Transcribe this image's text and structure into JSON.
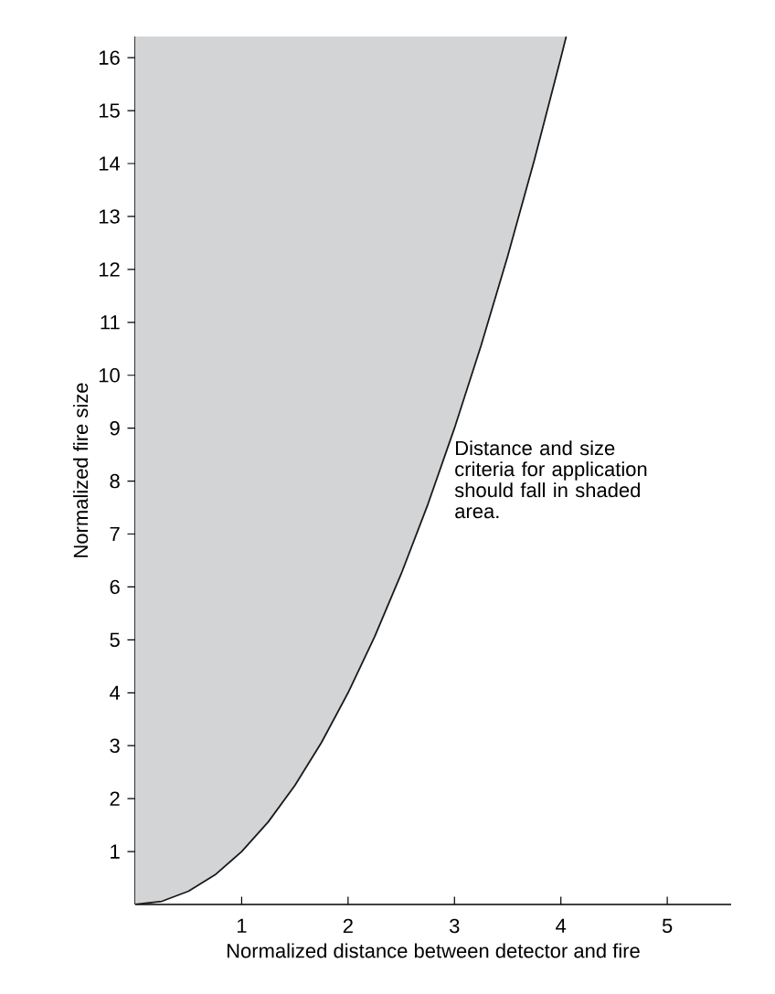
{
  "chart_data": {
    "type": "line",
    "xlabel": "Normalized distance between detector and fire",
    "ylabel": "Normalized fire size",
    "annotations": [
      "Distance and size criteria for application should fall in shaded area."
    ],
    "xlim": [
      0,
      5.6
    ],
    "ylim": [
      0,
      16.4
    ],
    "xticks": [
      1,
      2,
      3,
      4,
      5
    ],
    "yticks": [
      1,
      2,
      3,
      4,
      5,
      6,
      7,
      8,
      9,
      10,
      11,
      12,
      13,
      14,
      15,
      16
    ],
    "grid": false,
    "legend": false,
    "marker": "none",
    "line_style": "solid",
    "series": [
      {
        "color": "#1a1a1a",
        "x": [
          0,
          0.25,
          0.5,
          0.75,
          1,
          1.25,
          1.5,
          1.75,
          2,
          2.25,
          2.5,
          2.75,
          3,
          3.25,
          3.5,
          3.75,
          4,
          4.05
        ],
        "values": [
          0,
          0.06,
          0.25,
          0.56,
          1,
          1.56,
          2.25,
          3.06,
          4,
          5.06,
          6.25,
          7.56,
          9,
          10.56,
          12.25,
          14.06,
          16,
          16.4
        ],
        "lower": [
          0,
          0.06,
          0.25,
          0.56,
          1,
          1.56,
          2.25,
          3.06,
          4,
          5.06,
          6.25,
          7.56,
          9,
          10.56,
          12.25,
          14.06,
          16,
          16.4
        ],
        "upper": [
          16.4,
          16.4,
          16.4,
          16.4,
          16.4,
          16.4,
          16.4,
          16.4,
          16.4,
          16.4,
          16.4,
          16.4,
          16.4,
          16.4,
          16.4,
          16.4,
          16.4,
          16.4
        ]
      }
    ]
  }
}
